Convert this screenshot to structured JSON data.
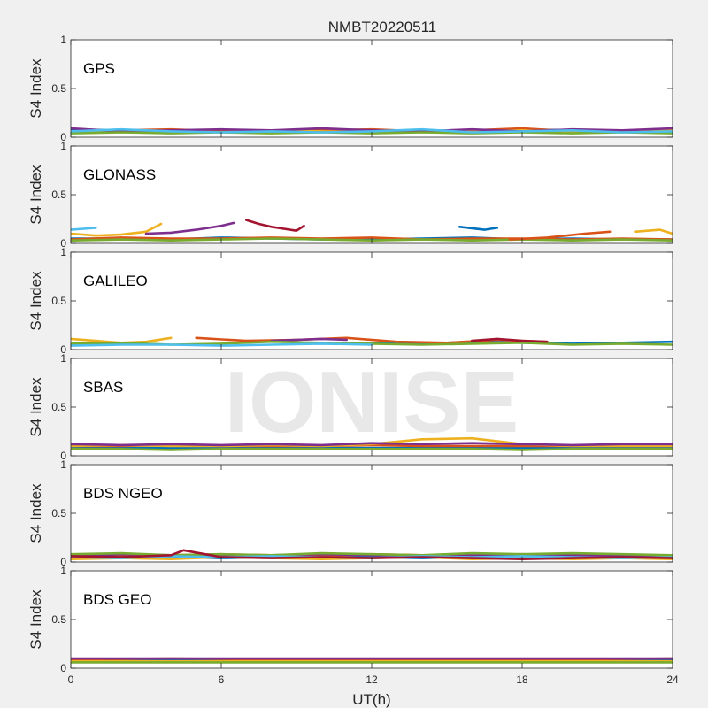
{
  "figure": {
    "title": "NMBT20220511",
    "xlabel": "UT(h)",
    "watermark": "IONISE",
    "colors": [
      "#0072BD",
      "#D95319",
      "#EDB120",
      "#7E2F8E",
      "#77AC30",
      "#4DBEEE",
      "#A2142F"
    ]
  },
  "chart_data": [
    {
      "type": "line",
      "panel_label": "GPS",
      "ylabel": "S4 Index",
      "xlim": [
        0,
        24
      ],
      "ylim": [
        0,
        1
      ],
      "xticks": [
        0,
        6,
        12,
        18,
        24
      ],
      "yticks": [
        0,
        0.5,
        1
      ],
      "xtick_labels_shown": false,
      "series": [
        {
          "x": [
            0,
            2,
            4,
            6,
            8,
            10,
            12,
            14,
            16,
            18,
            20,
            22,
            24
          ],
          "y": [
            0.08,
            0.07,
            0.06,
            0.07,
            0.06,
            0.08,
            0.06,
            0.07,
            0.06,
            0.08,
            0.07,
            0.06,
            0.08
          ]
        },
        {
          "x": [
            0,
            2,
            4,
            6,
            8,
            10,
            12,
            14,
            16,
            18,
            20,
            22,
            24
          ],
          "y": [
            0.05,
            0.07,
            0.08,
            0.06,
            0.05,
            0.07,
            0.08,
            0.06,
            0.07,
            0.09,
            0.06,
            0.07,
            0.05
          ]
        },
        {
          "x": [
            0,
            2,
            4,
            6,
            8,
            10,
            12,
            14,
            16,
            18,
            20,
            22,
            24
          ],
          "y": [
            0.06,
            0.05,
            0.07,
            0.05,
            0.07,
            0.06,
            0.05,
            0.07,
            0.06,
            0.07,
            0.05,
            0.06,
            0.07
          ]
        },
        {
          "x": [
            0,
            2,
            4,
            6,
            8,
            10,
            12,
            14,
            16,
            18,
            20,
            22,
            24
          ],
          "y": [
            0.09,
            0.06,
            0.07,
            0.08,
            0.07,
            0.09,
            0.07,
            0.06,
            0.08,
            0.06,
            0.08,
            0.07,
            0.09
          ]
        },
        {
          "x": [
            0,
            2,
            4,
            6,
            8,
            10,
            12,
            14,
            16,
            18,
            20,
            22,
            24
          ],
          "y": [
            0.04,
            0.05,
            0.04,
            0.05,
            0.04,
            0.05,
            0.04,
            0.05,
            0.04,
            0.05,
            0.04,
            0.05,
            0.04
          ]
        },
        {
          "x": [
            0,
            2,
            4,
            6,
            8,
            10,
            12,
            14,
            16,
            18,
            20,
            22,
            24
          ],
          "y": [
            0.06,
            0.08,
            0.06,
            0.05,
            0.06,
            0.05,
            0.06,
            0.08,
            0.05,
            0.06,
            0.07,
            0.05,
            0.06
          ]
        }
      ]
    },
    {
      "type": "line",
      "panel_label": "GLONASS",
      "ylabel": "S4 Index",
      "xlim": [
        0,
        24
      ],
      "ylim": [
        0,
        1
      ],
      "xticks": [
        0,
        6,
        12,
        18,
        24
      ],
      "yticks": [
        0,
        0.5,
        1
      ],
      "xtick_labels_shown": false,
      "series": [
        {
          "x": [
            0,
            2,
            4,
            6,
            8,
            10,
            12,
            14,
            16,
            18,
            20,
            22,
            24
          ],
          "y": [
            0.05,
            0.05,
            0.04,
            0.06,
            0.05,
            0.04,
            0.04,
            0.05,
            0.06,
            0.04,
            0.05,
            0.04,
            0.04
          ]
        },
        {
          "x": [
            0,
            2,
            4,
            6,
            8,
            10,
            12,
            14,
            16,
            18,
            20,
            22,
            24
          ],
          "y": [
            0.04,
            0.06,
            0.05,
            0.05,
            0.06,
            0.05,
            0.06,
            0.04,
            0.05,
            0.05,
            0.04,
            0.05,
            0.04
          ]
        },
        {
          "x": [
            0,
            1,
            2,
            3,
            3.6
          ],
          "y": [
            0.1,
            0.08,
            0.09,
            0.12,
            0.2
          ]
        },
        {
          "x": [
            3,
            4,
            5,
            6,
            6.5
          ],
          "y": [
            0.1,
            0.11,
            0.14,
            0.18,
            0.21
          ]
        },
        {
          "x": [
            0,
            2,
            4,
            6,
            8,
            10,
            12,
            14,
            16,
            18,
            20,
            22,
            24
          ],
          "y": [
            0.03,
            0.04,
            0.03,
            0.04,
            0.05,
            0.04,
            0.03,
            0.04,
            0.03,
            0.04,
            0.03,
            0.04,
            0.03
          ]
        },
        {
          "x": [
            0,
            0.5,
            1
          ],
          "y": [
            0.14,
            0.15,
            0.16
          ]
        },
        {
          "x": [
            7,
            7.5,
            8,
            8.5,
            9,
            9.3
          ],
          "y": [
            0.24,
            0.2,
            0.17,
            0.15,
            0.13,
            0.18
          ]
        },
        {
          "x": [
            15.5,
            16.5,
            17
          ],
          "y": [
            0.17,
            0.14,
            0.16
          ]
        },
        {
          "x": [
            17.5,
            19,
            20.5,
            21.5
          ],
          "y": [
            0.04,
            0.06,
            0.1,
            0.12
          ]
        },
        {
          "x": [
            22.5,
            23.5,
            24
          ],
          "y": [
            0.12,
            0.14,
            0.1
          ]
        }
      ]
    },
    {
      "type": "line",
      "panel_label": "GALILEO",
      "ylabel": "S4 Index",
      "xlim": [
        0,
        24
      ],
      "ylim": [
        0,
        1
      ],
      "xticks": [
        0,
        6,
        12,
        18,
        24
      ],
      "yticks": [
        0,
        0.5,
        1
      ],
      "xtick_labels_shown": false,
      "series": [
        {
          "x": [
            12,
            14,
            16,
            18,
            20,
            22,
            24
          ],
          "y": [
            0.07,
            0.06,
            0.08,
            0.07,
            0.06,
            0.07,
            0.08
          ]
        },
        {
          "x": [
            5,
            7,
            9,
            11,
            13,
            15,
            17,
            19
          ],
          "y": [
            0.12,
            0.09,
            0.1,
            0.12,
            0.08,
            0.07,
            0.1,
            0.08
          ]
        },
        {
          "x": [
            0,
            1,
            2,
            3,
            4
          ],
          "y": [
            0.11,
            0.09,
            0.07,
            0.08,
            0.12
          ]
        },
        {
          "x": [
            8,
            9,
            10,
            11
          ],
          "y": [
            0.09,
            0.1,
            0.11,
            0.1
          ]
        },
        {
          "x": [
            0,
            2,
            4,
            6,
            8,
            10,
            12,
            14,
            16,
            18,
            20,
            22,
            24
          ],
          "y": [
            0.06,
            0.07,
            0.05,
            0.06,
            0.08,
            0.07,
            0.06,
            0.05,
            0.06,
            0.07,
            0.05,
            0.06,
            0.05
          ]
        },
        {
          "x": [
            0,
            2,
            4,
            6,
            8,
            10,
            12
          ],
          "y": [
            0.04,
            0.05,
            0.05,
            0.04,
            0.05,
            0.06,
            0.05
          ]
        },
        {
          "x": [
            16,
            17,
            18,
            19
          ],
          "y": [
            0.09,
            0.11,
            0.09,
            0.08
          ]
        }
      ]
    },
    {
      "type": "line",
      "panel_label": "SBAS",
      "ylabel": "S4 Index",
      "xlim": [
        0,
        24
      ],
      "ylim": [
        0,
        1
      ],
      "xticks": [
        0,
        6,
        12,
        18,
        24
      ],
      "yticks": [
        0,
        0.5,
        1
      ],
      "xtick_labels_shown": false,
      "series": [
        {
          "x": [
            0,
            2,
            4,
            6,
            8,
            10,
            12,
            14,
            16,
            18,
            20,
            22,
            24
          ],
          "y": [
            0.08,
            0.08,
            0.08,
            0.08,
            0.08,
            0.08,
            0.08,
            0.08,
            0.08,
            0.08,
            0.08,
            0.08,
            0.08
          ]
        },
        {
          "x": [
            0,
            2,
            4,
            6,
            8,
            10,
            12,
            14,
            16,
            18,
            20,
            22,
            24
          ],
          "y": [
            0.1,
            0.1,
            0.11,
            0.1,
            0.1,
            0.1,
            0.11,
            0.1,
            0.1,
            0.1,
            0.1,
            0.1,
            0.1
          ]
        },
        {
          "x": [
            0,
            2,
            4,
            6,
            8,
            10,
            12,
            14,
            16,
            18,
            20,
            22,
            24
          ],
          "y": [
            0.1,
            0.11,
            0.1,
            0.1,
            0.11,
            0.1,
            0.12,
            0.17,
            0.18,
            0.12,
            0.1,
            0.1,
            0.1
          ]
        },
        {
          "x": [
            0,
            2,
            4,
            6,
            8,
            10,
            12,
            14,
            16,
            18,
            20,
            22,
            24
          ],
          "y": [
            0.12,
            0.11,
            0.12,
            0.11,
            0.12,
            0.11,
            0.13,
            0.12,
            0.13,
            0.12,
            0.11,
            0.12,
            0.12
          ]
        },
        {
          "x": [
            0,
            2,
            4,
            6,
            8,
            10,
            12,
            14,
            16,
            18,
            20,
            22,
            24
          ],
          "y": [
            0.07,
            0.07,
            0.06,
            0.07,
            0.07,
            0.07,
            0.07,
            0.07,
            0.07,
            0.06,
            0.07,
            0.07,
            0.07
          ]
        }
      ]
    },
    {
      "type": "line",
      "panel_label": "BDS NGEO",
      "ylabel": "S4 Index",
      "xlim": [
        0,
        24
      ],
      "ylim": [
        0,
        1
      ],
      "xticks": [
        0,
        6,
        12,
        18,
        24
      ],
      "yticks": [
        0,
        0.5,
        1
      ],
      "xtick_labels_shown": false,
      "series": [
        {
          "x": [
            0,
            2,
            4,
            6,
            8,
            10,
            12,
            14,
            16,
            18,
            20,
            22,
            24
          ],
          "y": [
            0.05,
            0.06,
            0.05,
            0.04,
            0.05,
            0.06,
            0.05,
            0.04,
            0.05,
            0.04,
            0.06,
            0.05,
            0.04
          ]
        },
        {
          "x": [
            0,
            2,
            4,
            6,
            8,
            10,
            12,
            14,
            16,
            18,
            20,
            22,
            24
          ],
          "y": [
            0.07,
            0.06,
            0.07,
            0.08,
            0.07,
            0.06,
            0.08,
            0.07,
            0.06,
            0.07,
            0.08,
            0.07,
            0.06
          ]
        },
        {
          "x": [
            0,
            2,
            4,
            6,
            8,
            10,
            12,
            14,
            16,
            18,
            20,
            22,
            24
          ],
          "y": [
            0.03,
            0.04,
            0.03,
            0.05,
            0.04,
            0.03,
            0.04,
            0.05,
            0.03,
            0.04,
            0.03,
            0.04,
            0.03
          ]
        },
        {
          "x": [
            0,
            2,
            4,
            6,
            8,
            10,
            12,
            14,
            16,
            18,
            20,
            22,
            24
          ],
          "y": [
            0.06,
            0.08,
            0.07,
            0.06,
            0.07,
            0.08,
            0.07,
            0.06,
            0.07,
            0.08,
            0.07,
            0.06,
            0.05
          ]
        },
        {
          "x": [
            0,
            2,
            4,
            6,
            8,
            10,
            12,
            14,
            16,
            18,
            20,
            22,
            24
          ],
          "y": [
            0.08,
            0.09,
            0.07,
            0.08,
            0.07,
            0.09,
            0.08,
            0.07,
            0.09,
            0.08,
            0.09,
            0.08,
            0.07
          ]
        },
        {
          "x": [
            0,
            2,
            4,
            6,
            8,
            10,
            12,
            14,
            16,
            18,
            20,
            22,
            24
          ],
          "y": [
            0.05,
            0.04,
            0.06,
            0.05,
            0.06,
            0.05,
            0.04,
            0.06,
            0.05,
            0.06,
            0.05,
            0.04,
            0.05
          ]
        },
        {
          "x": [
            0,
            2,
            4,
            4.5,
            6,
            8,
            10,
            12,
            14,
            16,
            18,
            20,
            22,
            24
          ],
          "y": [
            0.06,
            0.05,
            0.07,
            0.12,
            0.05,
            0.04,
            0.05,
            0.04,
            0.05,
            0.04,
            0.03,
            0.04,
            0.05,
            0.04
          ]
        }
      ]
    },
    {
      "type": "line",
      "panel_label": "BDS GEO",
      "ylabel": "S4 Index",
      "xlim": [
        0,
        24
      ],
      "ylim": [
        0,
        1
      ],
      "xticks": [
        0,
        6,
        12,
        18,
        24
      ],
      "yticks": [
        0,
        0.5,
        1
      ],
      "xtick_labels_shown": true,
      "xtick_labels": [
        "0",
        "6",
        "12",
        "18",
        "24"
      ],
      "series": [
        {
          "x": [
            0,
            4,
            8,
            12,
            16,
            20,
            24
          ],
          "y": [
            0.08,
            0.08,
            0.08,
            0.08,
            0.08,
            0.08,
            0.08
          ]
        },
        {
          "x": [
            0,
            4,
            8,
            12,
            16,
            20,
            24
          ],
          "y": [
            0.09,
            0.1,
            0.09,
            0.09,
            0.09,
            0.09,
            0.1
          ]
        },
        {
          "x": [
            0,
            4,
            8,
            12,
            16,
            20,
            24
          ],
          "y": [
            0.07,
            0.07,
            0.07,
            0.07,
            0.07,
            0.07,
            0.07
          ]
        },
        {
          "x": [
            0,
            4,
            8,
            12,
            16,
            20,
            24
          ],
          "y": [
            0.1,
            0.1,
            0.1,
            0.1,
            0.1,
            0.1,
            0.1
          ]
        },
        {
          "x": [
            0,
            4,
            8,
            12,
            16,
            20,
            24
          ],
          "y": [
            0.06,
            0.06,
            0.06,
            0.06,
            0.06,
            0.06,
            0.06
          ]
        }
      ]
    }
  ]
}
